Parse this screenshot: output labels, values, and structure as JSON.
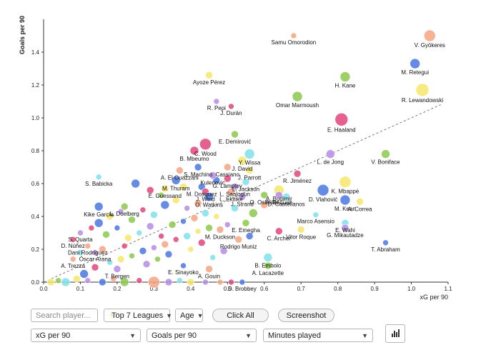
{
  "chart_data": {
    "type": "scatter",
    "xlabel": "xG per 90",
    "ylabel": "Goals per 90",
    "xlim": [
      0,
      1.1
    ],
    "ylim": [
      0,
      1.6
    ],
    "xticks": [
      "0.0",
      "0.1",
      "0.2",
      "0.3",
      "0.4",
      "0.5",
      "0.6",
      "0.7",
      "0.8",
      "0.9",
      "1.0",
      "1.1"
    ],
    "yticks": [
      "0.0",
      "0.2",
      "0.4",
      "0.6",
      "0.8",
      "1.0",
      "1.2",
      "1.4"
    ],
    "trendline": {
      "style": "dashed",
      "from": [
        0.0,
        0.0
      ],
      "to": [
        1.08,
        1.08
      ]
    },
    "labeled_points": [
      {
        "name": "V. Gyökeres",
        "x": 1.05,
        "y": 1.5,
        "color": "#f4a582",
        "size": 8
      },
      {
        "name": "Samu Omorodion",
        "x": 0.68,
        "y": 1.5,
        "color": "#f4a582",
        "size": 4
      },
      {
        "name": "M. Retegui",
        "x": 1.01,
        "y": 1.33,
        "color": "#4a77e0",
        "size": 7
      },
      {
        "name": "Ayoze Pérez",
        "x": 0.45,
        "y": 1.26,
        "color": "#f5e66b",
        "size": 5
      },
      {
        "name": "H. Kane",
        "x": 0.82,
        "y": 1.25,
        "color": "#8cc84b",
        "size": 7
      },
      {
        "name": "R. Lewandowski",
        "x": 1.03,
        "y": 1.17,
        "color": "#f5e66b",
        "size": 9
      },
      {
        "name": "Omar Marmoush",
        "x": 0.69,
        "y": 1.13,
        "color": "#8cc84b",
        "size": 7
      },
      {
        "name": "R. Pepi",
        "x": 0.47,
        "y": 1.1,
        "color": "#b58be8",
        "size": 4
      },
      {
        "name": "J. Durán",
        "x": 0.51,
        "y": 1.07,
        "color": "#e0457b",
        "size": 4
      },
      {
        "name": "E. Haaland",
        "x": 0.81,
        "y": 0.99,
        "color": "#e0457b",
        "size": 9
      },
      {
        "name": "E. Demirović",
        "x": 0.52,
        "y": 0.9,
        "color": "#8cc84b",
        "size": 5
      },
      {
        "name": "C. Wood",
        "x": 0.44,
        "y": 0.84,
        "color": "#e0457b",
        "size": 8
      },
      {
        "name": "B. Mbeumo",
        "x": 0.41,
        "y": 0.8,
        "color": "#e0457b",
        "size": 6
      },
      {
        "name": "Y. Wissa",
        "x": 0.56,
        "y": 0.78,
        "color": "#7fe0ea",
        "size": 7
      },
      {
        "name": "L. de Jong",
        "x": 0.78,
        "y": 0.78,
        "color": "#b58be8",
        "size": 6
      },
      {
        "name": "V. Boniface",
        "x": 0.93,
        "y": 0.78,
        "color": "#8cc84b",
        "size": 6
      },
      {
        "name": "J. David",
        "x": 0.54,
        "y": 0.74,
        "color": "#f5e66b",
        "size": 6
      },
      {
        "name": "S. Machino",
        "x": 0.42,
        "y": 0.7,
        "color": "#4a77e0",
        "size": 5
      },
      {
        "name": "A. El Ouazzani",
        "x": 0.37,
        "y": 0.68,
        "color": "#f4a582",
        "size": 5
      },
      {
        "name": "Cassiano",
        "x": 0.5,
        "y": 0.7,
        "color": "#f4a582",
        "size": 5
      },
      {
        "name": "Kulenovic",
        "x": 0.46,
        "y": 0.65,
        "color": "#b58be8",
        "size": 5
      },
      {
        "name": "J. Parrott",
        "x": 0.56,
        "y": 0.68,
        "color": "#f5e66b",
        "size": 5
      },
      {
        "name": "R. Jiménez",
        "x": 0.69,
        "y": 0.66,
        "color": "#e0457b",
        "size": 5
      },
      {
        "name": "S. Babicka",
        "x": 0.15,
        "y": 0.64,
        "color": "#7fe0ea",
        "size": 4
      },
      {
        "name": "M. Thuram",
        "x": 0.36,
        "y": 0.62,
        "color": "#4a77e0",
        "size": 6
      },
      {
        "name": "G. Lamptey",
        "x": 0.5,
        "y": 0.63,
        "color": "#e0457b",
        "size": 5
      },
      {
        "name": "L. Jackson",
        "x": 0.55,
        "y": 0.61,
        "color": "#7fe0ea",
        "size": 5
      },
      {
        "name": "M. Dosquez",
        "x": 0.43,
        "y": 0.58,
        "color": "#4a77e0",
        "size": 5
      },
      {
        "name": "K. Mbappé",
        "x": 0.82,
        "y": 0.61,
        "color": "#f5e66b",
        "size": 8
      },
      {
        "name": "L. Saalogun",
        "x": 0.52,
        "y": 0.58,
        "color": "#b58be8",
        "size": 5
      },
      {
        "name": "A. Budimir",
        "x": 0.64,
        "y": 0.56,
        "color": "#f5e66b",
        "size": 7
      },
      {
        "name": "D. Vlahović",
        "x": 0.76,
        "y": 0.56,
        "color": "#4a77e0",
        "size": 8
      },
      {
        "name": "E. Guessand",
        "x": 0.33,
        "y": 0.57,
        "color": "#f5e66b",
        "size": 5
      },
      {
        "name": "L. Ekitike",
        "x": 0.51,
        "y": 0.55,
        "color": "#f4a582",
        "size": 5
      },
      {
        "name": "O. Osheiler",
        "x": 0.6,
        "y": 0.53,
        "color": "#8cc84b",
        "size": 5
      },
      {
        "name": "A. Barjuan",
        "x": 0.64,
        "y": 0.53,
        "color": "#b58be8",
        "size": 5
      },
      {
        "name": "J. Wind",
        "x": 0.44,
        "y": 0.55,
        "color": "#e0457b",
        "size": 5
      },
      {
        "name": "O. Watkins",
        "x": 0.45,
        "y": 0.52,
        "color": "#4a77e0",
        "size": 6
      },
      {
        "name": "J. Strand",
        "x": 0.54,
        "y": 0.52,
        "color": "#b58be8",
        "size": 5
      },
      {
        "name": "D. Castellanos",
        "x": 0.66,
        "y": 0.52,
        "color": "#7fe0ea",
        "size": 5
      },
      {
        "name": "M. Kean",
        "x": 0.82,
        "y": 0.5,
        "color": "#4a77e0",
        "size": 7
      },
      {
        "name": "A. Correa",
        "x": 0.86,
        "y": 0.49,
        "color": "#f5e66b",
        "size": 5
      },
      {
        "name": "Kike García",
        "x": 0.15,
        "y": 0.46,
        "color": "#4a77e0",
        "size": 6
      },
      {
        "name": "L. Doelberg",
        "x": 0.22,
        "y": 0.46,
        "color": "#8cc84b",
        "size": 5
      },
      {
        "name": "Marco Asensio",
        "x": 0.74,
        "y": 0.41,
        "color": "#7fe0ea",
        "size": 4
      },
      {
        "name": "E. Wahi",
        "x": 0.82,
        "y": 0.36,
        "color": "#7fe0ea",
        "size": 5
      },
      {
        "name": "G. Mikautadze",
        "x": 0.82,
        "y": 0.33,
        "color": "#b58be8",
        "size": 5
      },
      {
        "name": "E. Emegha",
        "x": 0.55,
        "y": 0.36,
        "color": "#8cc84b",
        "size": 5
      },
      {
        "name": "M. Duckson",
        "x": 0.48,
        "y": 0.32,
        "color": "#f4a582",
        "size": 5
      },
      {
        "name": "C. Archer",
        "x": 0.64,
        "y": 0.31,
        "color": "#e0457b",
        "size": 5
      },
      {
        "name": "Vitor Roque",
        "x": 0.7,
        "y": 0.32,
        "color": "#f5e66b",
        "size": 5
      },
      {
        "name": "S. Quarta",
        "x": 0.1,
        "y": 0.3,
        "color": "#b58be8",
        "size": 4
      },
      {
        "name": "Rodrigo Muniz",
        "x": 0.53,
        "y": 0.26,
        "color": "#f4a582",
        "size": 5
      },
      {
        "name": "T. Abraham",
        "x": 0.93,
        "y": 0.24,
        "color": "#4a77e0",
        "size": 4
      },
      {
        "name": "D. Núñez",
        "x": 0.08,
        "y": 0.26,
        "color": "#e0457b",
        "size": 4
      },
      {
        "name": "Dani Rodríguez",
        "x": 0.12,
        "y": 0.22,
        "color": "#f4a582",
        "size": 4
      },
      {
        "name": "Óscar Arana",
        "x": 0.14,
        "y": 0.18,
        "color": "#b58be8",
        "size": 4
      },
      {
        "name": "B. Embolo",
        "x": 0.61,
        "y": 0.15,
        "color": "#7fe0ea",
        "size": 6
      },
      {
        "name": "A. Lacazette",
        "x": 0.61,
        "y": 0.1,
        "color": "#8cc84b",
        "size": 5
      },
      {
        "name": "A. Trezza",
        "x": 0.08,
        "y": 0.14,
        "color": "#f4a582",
        "size": 4
      },
      {
        "name": "A. Gouin",
        "x": 0.45,
        "y": 0.08,
        "color": "#f4a582",
        "size": 5
      },
      {
        "name": "E. Sinayoko",
        "x": 0.38,
        "y": 0.1,
        "color": "#4a77e0",
        "size": 4
      },
      {
        "name": "T. Bergen",
        "x": 0.2,
        "y": 0.08,
        "color": "#b58be8",
        "size": 5
      },
      {
        "name": "D. Brobbey",
        "x": 0.54,
        "y": 0.0,
        "color": "#4a77e0",
        "size": 4
      }
    ],
    "unlabeled_points": [
      {
        "x": 0.02,
        "y": 0.0,
        "color": "#f5e66b",
        "size": 5
      },
      {
        "x": 0.04,
        "y": 0.01,
        "color": "#8cc84b",
        "size": 4
      },
      {
        "x": 0.06,
        "y": 0.0,
        "color": "#7fe0ea",
        "size": 6
      },
      {
        "x": 0.09,
        "y": 0.02,
        "color": "#f5e66b",
        "size": 5
      },
      {
        "x": 0.12,
        "y": 0.01,
        "color": "#b58be8",
        "size": 4
      },
      {
        "x": 0.16,
        "y": 0.0,
        "color": "#4a77e0",
        "size": 5
      },
      {
        "x": 0.19,
        "y": 0.02,
        "color": "#f4a582",
        "size": 4
      },
      {
        "x": 0.22,
        "y": 0.0,
        "color": "#8cc84b",
        "size": 6
      },
      {
        "x": 0.26,
        "y": 0.01,
        "color": "#e0457b",
        "size": 4
      },
      {
        "x": 0.3,
        "y": 0.0,
        "color": "#f4a582",
        "size": 8
      },
      {
        "x": 0.34,
        "y": 0.0,
        "color": "#b58be8",
        "size": 5
      },
      {
        "x": 0.37,
        "y": 0.01,
        "color": "#7fe0ea",
        "size": 4
      },
      {
        "x": 0.4,
        "y": 0.0,
        "color": "#f5e66b",
        "size": 5
      },
      {
        "x": 0.44,
        "y": 0.0,
        "color": "#b58be8",
        "size": 4
      },
      {
        "x": 0.48,
        "y": 0.0,
        "color": "#f4a582",
        "size": 4
      },
      {
        "x": 0.51,
        "y": 0.0,
        "color": "#e0457b",
        "size": 4
      },
      {
        "x": 0.11,
        "y": 0.05,
        "color": "#4a77e0",
        "size": 6
      },
      {
        "x": 0.14,
        "y": 0.09,
        "color": "#e0457b",
        "size": 5
      },
      {
        "x": 0.18,
        "y": 0.12,
        "color": "#7fe0ea",
        "size": 4
      },
      {
        "x": 0.21,
        "y": 0.14,
        "color": "#f5e66b",
        "size": 5
      },
      {
        "x": 0.24,
        "y": 0.16,
        "color": "#8cc84b",
        "size": 4
      },
      {
        "x": 0.27,
        "y": 0.19,
        "color": "#4a77e0",
        "size": 5
      },
      {
        "x": 0.3,
        "y": 0.21,
        "color": "#b58be8",
        "size": 4
      },
      {
        "x": 0.33,
        "y": 0.23,
        "color": "#f4a582",
        "size": 5
      },
      {
        "x": 0.36,
        "y": 0.26,
        "color": "#e0457b",
        "size": 4
      },
      {
        "x": 0.39,
        "y": 0.28,
        "color": "#7fe0ea",
        "size": 5
      },
      {
        "x": 0.42,
        "y": 0.31,
        "color": "#f5e66b",
        "size": 4
      },
      {
        "x": 0.45,
        "y": 0.33,
        "color": "#8cc84b",
        "size": 5
      },
      {
        "x": 0.15,
        "y": 0.36,
        "color": "#4a77e0",
        "size": 6
      },
      {
        "x": 0.18,
        "y": 0.4,
        "color": "#f5e66b",
        "size": 5
      },
      {
        "x": 0.21,
        "y": 0.43,
        "color": "#b58be8",
        "size": 4
      },
      {
        "x": 0.24,
        "y": 0.38,
        "color": "#8cc84b",
        "size": 5
      },
      {
        "x": 0.27,
        "y": 0.44,
        "color": "#e0457b",
        "size": 4
      },
      {
        "x": 0.3,
        "y": 0.41,
        "color": "#7fe0ea",
        "size": 5
      },
      {
        "x": 0.33,
        "y": 0.47,
        "color": "#4a77e0",
        "size": 6
      },
      {
        "x": 0.36,
        "y": 0.5,
        "color": "#f5e66b",
        "size": 5
      },
      {
        "x": 0.39,
        "y": 0.45,
        "color": "#b58be8",
        "size": 4
      },
      {
        "x": 0.42,
        "y": 0.48,
        "color": "#f4a582",
        "size": 5
      },
      {
        "x": 0.13,
        "y": 0.33,
        "color": "#e0457b",
        "size": 4
      },
      {
        "x": 0.17,
        "y": 0.29,
        "color": "#8cc84b",
        "size": 5
      },
      {
        "x": 0.2,
        "y": 0.33,
        "color": "#4a77e0",
        "size": 4
      },
      {
        "x": 0.23,
        "y": 0.27,
        "color": "#f5e66b",
        "size": 5
      },
      {
        "x": 0.26,
        "y": 0.3,
        "color": "#7fe0ea",
        "size": 4
      },
      {
        "x": 0.29,
        "y": 0.34,
        "color": "#b58be8",
        "size": 5
      },
      {
        "x": 0.32,
        "y": 0.28,
        "color": "#e0457b",
        "size": 4
      },
      {
        "x": 0.35,
        "y": 0.35,
        "color": "#8cc84b",
        "size": 5
      },
      {
        "x": 0.38,
        "y": 0.37,
        "color": "#4a77e0",
        "size": 4
      },
      {
        "x": 0.41,
        "y": 0.39,
        "color": "#f4a582",
        "size": 5
      },
      {
        "x": 0.44,
        "y": 0.42,
        "color": "#7fe0ea",
        "size": 5
      },
      {
        "x": 0.47,
        "y": 0.4,
        "color": "#f5e66b",
        "size": 4
      },
      {
        "x": 0.1,
        "y": 0.18,
        "color": "#7fe0ea",
        "size": 4
      },
      {
        "x": 0.16,
        "y": 0.2,
        "color": "#f4a582",
        "size": 5
      },
      {
        "x": 0.22,
        "y": 0.22,
        "color": "#e0457b",
        "size": 4
      },
      {
        "x": 0.28,
        "y": 0.11,
        "color": "#b58be8",
        "size": 5
      },
      {
        "x": 0.31,
        "y": 0.14,
        "color": "#8cc84b",
        "size": 4
      },
      {
        "x": 0.34,
        "y": 0.17,
        "color": "#4a77e0",
        "size": 5
      },
      {
        "x": 0.4,
        "y": 0.2,
        "color": "#f5e66b",
        "size": 4
      },
      {
        "x": 0.43,
        "y": 0.24,
        "color": "#e0457b",
        "size": 5
      },
      {
        "x": 0.46,
        "y": 0.15,
        "color": "#7fe0ea",
        "size": 4
      },
      {
        "x": 0.49,
        "y": 0.19,
        "color": "#b58be8",
        "size": 5
      },
      {
        "x": 0.25,
        "y": 0.6,
        "color": "#4a77e0",
        "size": 6
      },
      {
        "x": 0.29,
        "y": 0.56,
        "color": "#e0457b",
        "size": 5
      },
      {
        "x": 0.32,
        "y": 0.53,
        "color": "#8cc84b",
        "size": 4
      },
      {
        "x": 0.38,
        "y": 0.58,
        "color": "#f5e66b",
        "size": 5
      },
      {
        "x": 0.47,
        "y": 0.62,
        "color": "#4a77e0",
        "size": 5
      },
      {
        "x": 0.52,
        "y": 0.45,
        "color": "#7fe0ea",
        "size": 5
      },
      {
        "x": 0.57,
        "y": 0.42,
        "color": "#8cc84b",
        "size": 6
      },
      {
        "x": 0.6,
        "y": 0.47,
        "color": "#f4a582",
        "size": 5
      },
      {
        "x": 0.5,
        "y": 0.35,
        "color": "#b58be8",
        "size": 4
      },
      {
        "x": 0.56,
        "y": 0.28,
        "color": "#4a77e0",
        "size": 5
      }
    ]
  },
  "controls": {
    "search_placeholder": "Search player...",
    "league_label": "Top 7 Leagues",
    "age_label": "Age",
    "click_all_label": "Click All",
    "screenshot_label": "Screenshot",
    "x_axis_select": "xG per 90",
    "y_axis_select": "Goals per 90",
    "size_select": "Minutes played",
    "chart_icon": "bar-chart-icon"
  }
}
